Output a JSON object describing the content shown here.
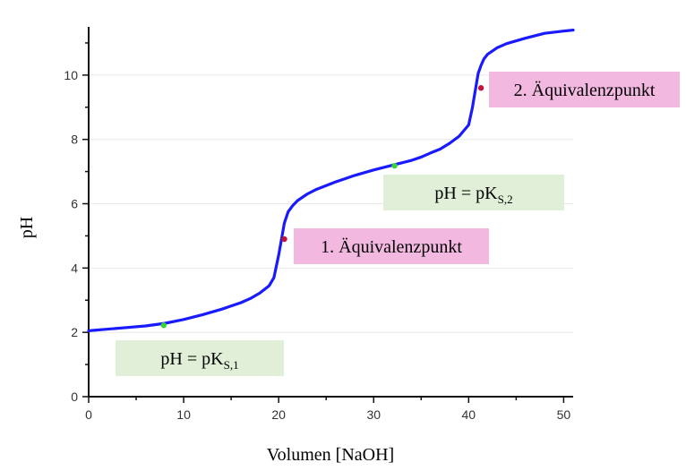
{
  "chart_data": {
    "type": "line",
    "xlabel": "Volumen [NaOH]",
    "ylabel": "pH",
    "xlim": [
      0,
      51
    ],
    "ylim": [
      0,
      11.5
    ],
    "x_ticks": [
      "0",
      "10",
      "20",
      "30",
      "40",
      "50"
    ],
    "y_ticks": [
      "0",
      "2",
      "4",
      "6",
      "8",
      "10"
    ],
    "grid": "horizontal",
    "colors": {
      "curve": "#1a1aff",
      "equivalence_point": "#c0143c",
      "half_equivalence_point": "#3ad13a",
      "equivalence_label_bg": "#f2b8e0",
      "pks_label_bg": "#e2efd8",
      "axis": "#111111",
      "grid": "#e8e8e8"
    },
    "series": [
      {
        "x": [
          0,
          2,
          4,
          6,
          8,
          10,
          12,
          14,
          16,
          17,
          18,
          19,
          19.5,
          20,
          20.3,
          20.6,
          21,
          21.5,
          22,
          23,
          24,
          26,
          28,
          30,
          32,
          34,
          35,
          36,
          37,
          38,
          39,
          40,
          40.4,
          40.8,
          41,
          41.3,
          41.6,
          42,
          43,
          44,
          46,
          48,
          50,
          51
        ],
        "y": [
          2.05,
          2.1,
          2.15,
          2.2,
          2.28,
          2.4,
          2.55,
          2.72,
          2.92,
          3.05,
          3.22,
          3.45,
          3.7,
          4.4,
          4.9,
          5.4,
          5.75,
          5.95,
          6.1,
          6.3,
          6.45,
          6.68,
          6.88,
          7.05,
          7.2,
          7.35,
          7.45,
          7.58,
          7.7,
          7.88,
          8.1,
          8.45,
          9.0,
          9.7,
          10.05,
          10.3,
          10.5,
          10.65,
          10.85,
          10.98,
          11.15,
          11.3,
          11.37,
          11.4
        ]
      }
    ],
    "points": [
      {
        "x": 7.9,
        "y": 2.22,
        "kind": "half_equivalence"
      },
      {
        "x": 20.6,
        "y": 4.9,
        "kind": "equivalence"
      },
      {
        "x": 32.2,
        "y": 7.18,
        "kind": "half_equivalence"
      },
      {
        "x": 41.3,
        "y": 9.6,
        "kind": "equivalence"
      }
    ],
    "annotations": [
      {
        "text": "pH = pK",
        "subscript": "S,1",
        "kind": "pks"
      },
      {
        "text": "1. Äquivalenzpunkt",
        "subscript": "",
        "kind": "equivalence"
      },
      {
        "text": "pH = pK",
        "subscript": "S,2",
        "kind": "pks"
      },
      {
        "text": "2. Äquivalenzpunkt",
        "subscript": "",
        "kind": "equivalence"
      }
    ]
  }
}
